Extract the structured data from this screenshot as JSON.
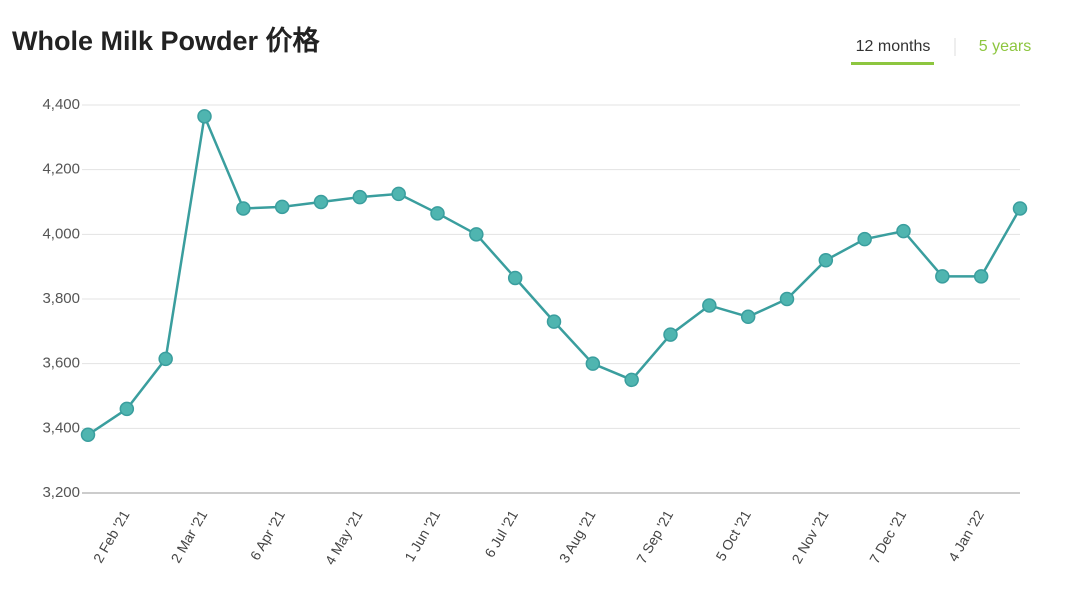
{
  "chart_data": {
    "type": "line",
    "title": "Whole Milk Powder 价格",
    "toggles": [
      "12 months",
      "5 years"
    ],
    "categories": [
      null,
      "2 Feb '21",
      null,
      "2 Mar '21",
      null,
      "6 Apr '21",
      null,
      "4 May '21",
      null,
      "1 Jun '21",
      null,
      "6 Jul '21",
      null,
      "3 Aug '21",
      null,
      "7 Sep '21",
      null,
      "5 Oct '21",
      null,
      "2 Nov '21",
      null,
      "7 Dec '21",
      null,
      "4 Jan '22",
      null
    ],
    "values": [
      3380,
      3460,
      3615,
      4365,
      4080,
      4085,
      4100,
      4115,
      4125,
      4065,
      4000,
      3865,
      3730,
      3600,
      3550,
      3690,
      3780,
      3745,
      3800,
      3920,
      3985,
      4010,
      3870,
      3870,
      4080
    ],
    "color": "#3a9e9e",
    "ylim": [
      3200,
      4400
    ],
    "yticks": [
      {
        "value": 3200,
        "label": "3,200"
      },
      {
        "value": 3400,
        "label": "3,400"
      },
      {
        "value": 3600,
        "label": "3,600"
      },
      {
        "value": 3800,
        "label": "3,800"
      },
      {
        "value": 4000,
        "label": "4,000"
      },
      {
        "value": 4200,
        "label": "4,200"
      },
      {
        "value": 4400,
        "label": "4,400"
      }
    ],
    "grid": true
  }
}
